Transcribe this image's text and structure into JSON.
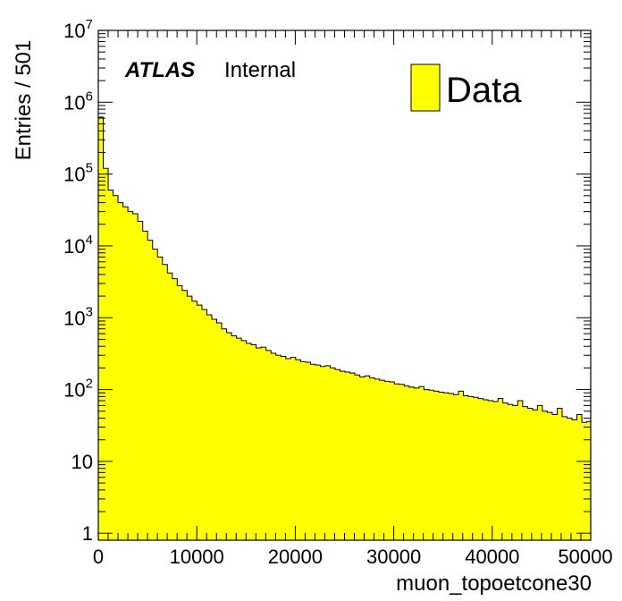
{
  "chart_data": {
    "type": "bar",
    "histogram": true,
    "xlabel": "muon_topoetcone30",
    "ylabel": "Entries / 501",
    "xlim": [
      0,
      50000
    ],
    "ylim": [
      0.8,
      10000000
    ],
    "y_scale": "log",
    "bin_width": 501,
    "fill_color": "#ffff00",
    "x_ticks": [
      {
        "value": 0,
        "label": "0"
      },
      {
        "value": 10000,
        "label": "10000"
      },
      {
        "value": 20000,
        "label": "20000"
      },
      {
        "value": 30000,
        "label": "30000"
      },
      {
        "value": 40000,
        "label": "40000"
      },
      {
        "value": 50000,
        "label": "50000"
      }
    ],
    "y_ticks": [
      {
        "value": 1,
        "base": "1",
        "exp": ""
      },
      {
        "value": 10,
        "base": "10",
        "exp": ""
      },
      {
        "value": 100,
        "base": "10",
        "exp": "2"
      },
      {
        "value": 1000,
        "base": "10",
        "exp": "3"
      },
      {
        "value": 10000,
        "base": "10",
        "exp": "4"
      },
      {
        "value": 100000,
        "base": "10",
        "exp": "5"
      },
      {
        "value": 1000000,
        "base": "10",
        "exp": "6"
      },
      {
        "value": 10000000,
        "base": "10",
        "exp": "7"
      }
    ],
    "annotation": {
      "bold": "ATLAS",
      "text": "Internal"
    },
    "legend": {
      "position": "top-right",
      "entries": [
        {
          "label": "Data",
          "color": "#ffff00"
        }
      ]
    },
    "values": [
      620000,
      120000,
      60000,
      50000,
      40000,
      35000,
      30000,
      28000,
      22000,
      16000,
      12000,
      9000,
      7000,
      5500,
      4200,
      3500,
      2800,
      2400,
      2000,
      1700,
      1500,
      1300,
      1100,
      950,
      850,
      700,
      620,
      560,
      520,
      480,
      440,
      420,
      380,
      390,
      350,
      320,
      300,
      290,
      270,
      280,
      260,
      245,
      240,
      225,
      220,
      210,
      215,
      200,
      190,
      180,
      175,
      170,
      160,
      150,
      155,
      145,
      140,
      135,
      130,
      128,
      120,
      118,
      112,
      108,
      105,
      110,
      100,
      98,
      95,
      92,
      90,
      88,
      85,
      95,
      82,
      80,
      78,
      75,
      72,
      70,
      68,
      75,
      65,
      62,
      60,
      70,
      58,
      55,
      52,
      60,
      50,
      48,
      45,
      55,
      42,
      40,
      38,
      45,
      35,
      36
    ]
  }
}
